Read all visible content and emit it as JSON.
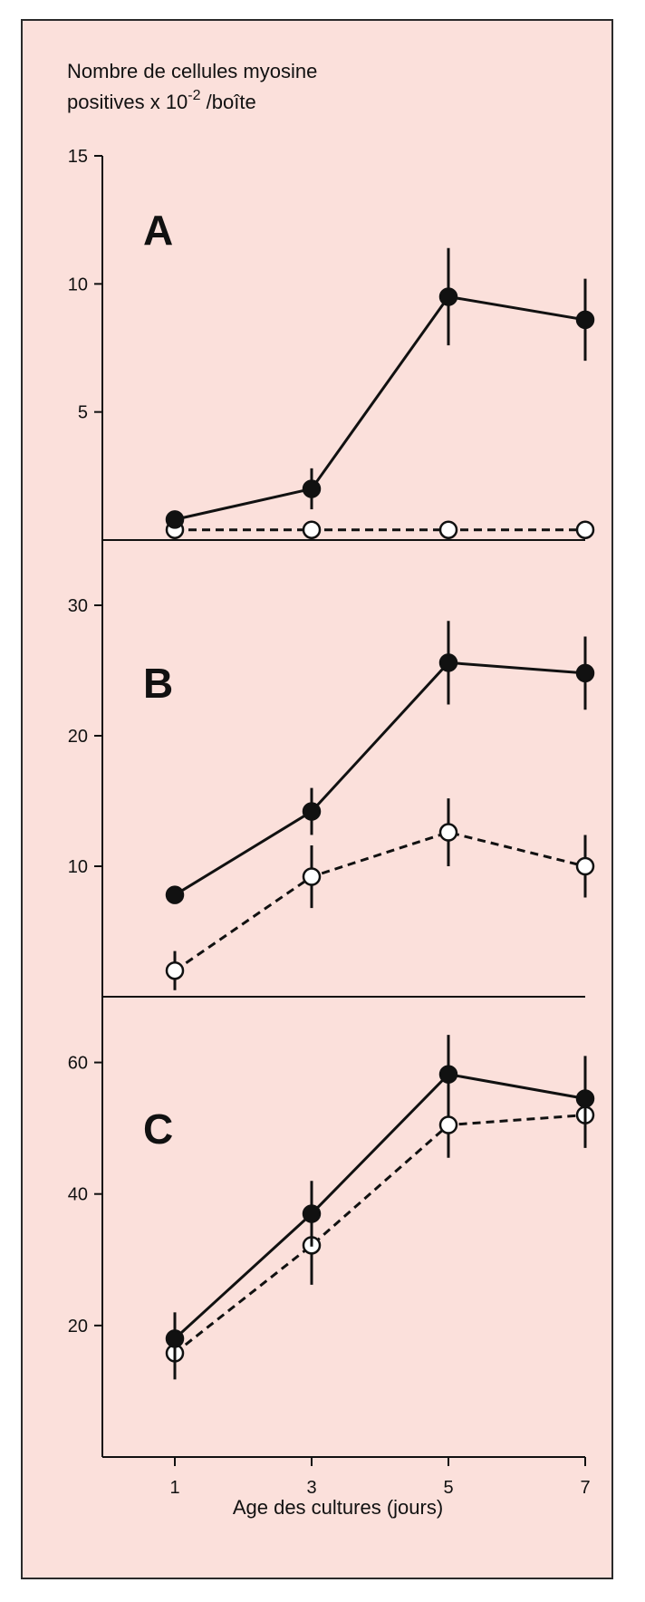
{
  "y_title_line1": "Nombre de cellules myosine",
  "y_title_line2_prefix": "positives x 10",
  "y_title_line2_exp": "-2",
  "y_title_line2_suffix": " /boîte",
  "xlabel": "Age des cultures (jours)",
  "colors": {
    "background": "#fbe0db",
    "ink": "#111111",
    "open_marker_fill": "#ffffff"
  },
  "chart_data": [
    {
      "type": "line",
      "panel_label": "A",
      "x": [
        1,
        3,
        5,
        7
      ],
      "x_ticks": [
        "1",
        "3",
        "5",
        "7"
      ],
      "ylim": [
        0,
        15
      ],
      "y_ticks": [
        5,
        10,
        15
      ],
      "series": [
        {
          "marker": "filled",
          "line": "solid",
          "values": [
            0.8,
            2.0,
            9.5,
            8.6
          ],
          "errors": [
            0.3,
            0.8,
            1.9,
            1.6
          ]
        },
        {
          "marker": "open",
          "line": "dashed",
          "values": [
            0.4,
            0.4,
            0.4,
            0.4
          ],
          "errors": [
            0,
            0,
            0,
            0
          ]
        }
      ]
    },
    {
      "type": "line",
      "panel_label": "B",
      "x": [
        1,
        3,
        5,
        7
      ],
      "x_ticks": [
        "1",
        "3",
        "5",
        "7"
      ],
      "ylim": [
        0,
        35
      ],
      "y_ticks": [
        10,
        20,
        30
      ],
      "series": [
        {
          "marker": "filled",
          "line": "solid",
          "values": [
            7.8,
            14.2,
            25.6,
            24.8
          ],
          "errors": [
            0,
            1.8,
            3.2,
            2.8
          ]
        },
        {
          "marker": "open",
          "line": "dashed",
          "values": [
            2.0,
            9.2,
            12.6,
            10.0
          ],
          "errors": [
            1.5,
            2.4,
            2.6,
            2.4
          ]
        }
      ]
    },
    {
      "type": "line",
      "panel_label": "C",
      "x": [
        1,
        3,
        5,
        7
      ],
      "x_ticks": [
        "1",
        "3",
        "5",
        "7"
      ],
      "ylim": [
        0,
        70
      ],
      "y_ticks": [
        20,
        40,
        60
      ],
      "series": [
        {
          "marker": "filled",
          "line": "solid",
          "values": [
            18.0,
            37.0,
            58.2,
            54.5
          ],
          "errors": [
            4.0,
            5.0,
            6.0,
            6.5
          ]
        },
        {
          "marker": "open",
          "line": "dashed",
          "values": [
            15.8,
            32.2,
            50.5,
            52.0
          ],
          "errors": [
            4.0,
            6.0,
            5.0,
            5.0
          ]
        }
      ]
    }
  ]
}
